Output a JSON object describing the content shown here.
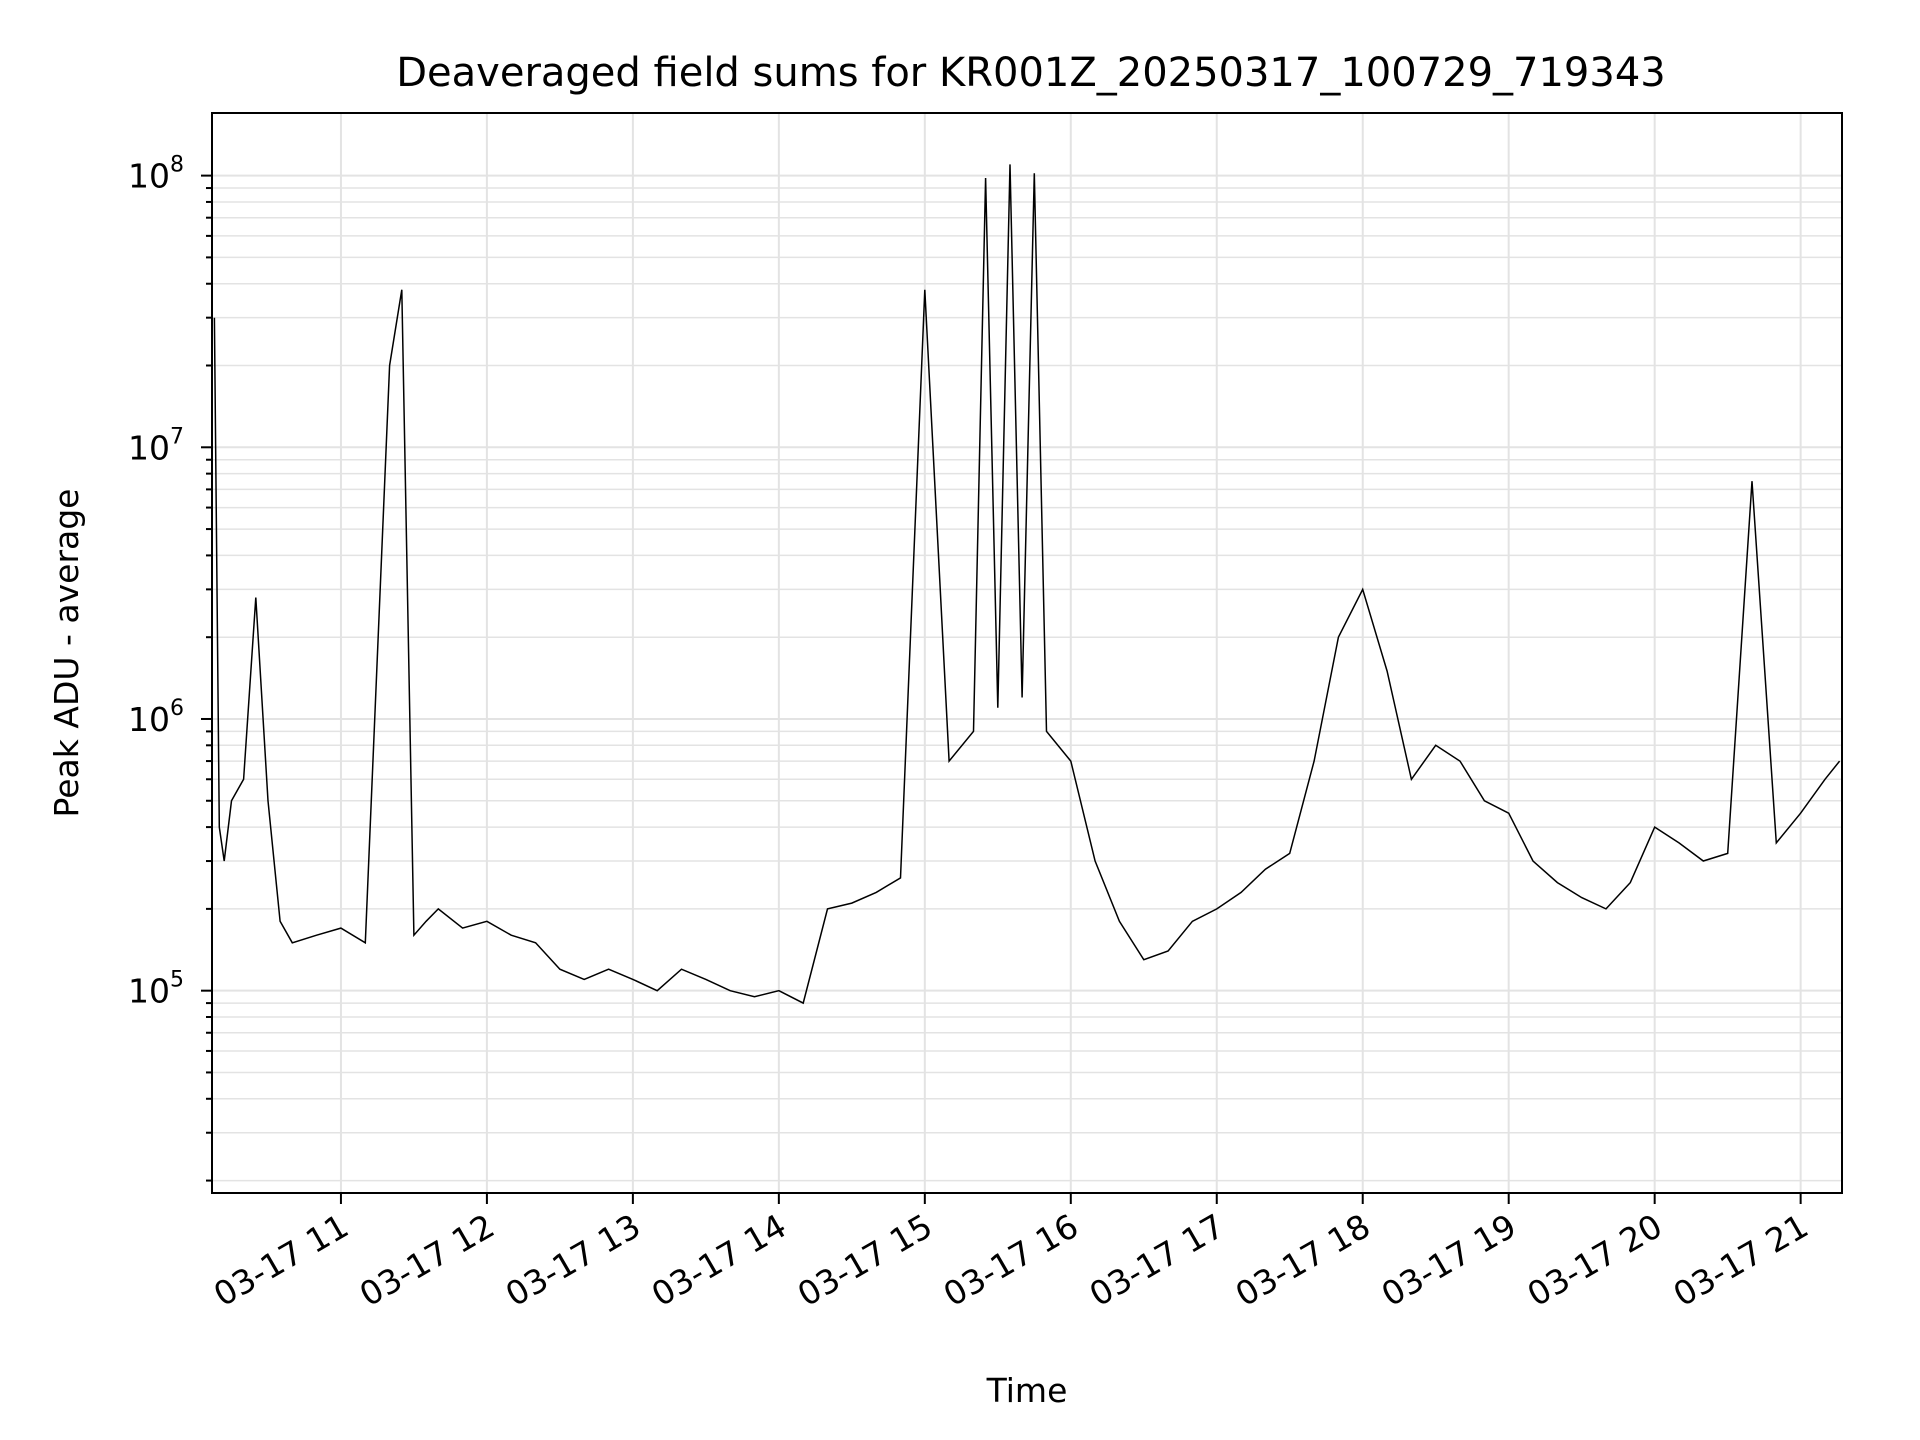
{
  "chart_data": {
    "type": "line",
    "title": "Deaveraged field sums for KR001Z_20250317_100729_719343",
    "xlabel": "Time",
    "ylabel": "Peak ADU - average",
    "x_ticks": [
      "03-17 11",
      "03-17 12",
      "03-17 13",
      "03-17 14",
      "03-17 15",
      "03-17 16",
      "03-17 17",
      "03-17 18",
      "03-17 19",
      "03-17 20",
      "03-17 21"
    ],
    "y_ticks": [
      {
        "base": "10",
        "exp": "5"
      },
      {
        "base": "10",
        "exp": "6"
      },
      {
        "base": "10",
        "exp": "7"
      },
      {
        "base": "10",
        "exp": "8"
      }
    ],
    "yscale": "log",
    "xlim": [
      "2025-03-17 10:07",
      "2025-03-17 21:17"
    ],
    "ylim": [
      18000,
      170000000
    ],
    "grid": true,
    "line_color": "#000000",
    "grid_color": "#e3e3e3",
    "series": [
      {
        "x": [
          "10:08",
          "10:10",
          "10:12",
          "10:15",
          "10:20",
          "10:25",
          "10:30",
          "10:35",
          "10:40",
          "10:50",
          "11:00",
          "11:10",
          "11:20",
          "11:25",
          "11:30",
          "11:35",
          "11:40",
          "11:50",
          "12:00",
          "12:10",
          "12:20",
          "12:30",
          "12:40",
          "12:50",
          "13:00",
          "13:10",
          "13:20",
          "13:30",
          "13:40",
          "13:50",
          "14:00",
          "14:10",
          "14:20",
          "14:30",
          "14:40",
          "14:50",
          "15:00",
          "15:10",
          "15:20",
          "15:25",
          "15:30",
          "15:35",
          "15:40",
          "15:45",
          "15:50",
          "16:00",
          "16:10",
          "16:20",
          "16:30",
          "16:40",
          "16:50",
          "17:00",
          "17:10",
          "17:20",
          "17:30",
          "17:40",
          "17:50",
          "18:00",
          "18:10",
          "18:20",
          "18:30",
          "18:40",
          "18:50",
          "19:00",
          "19:10",
          "19:20",
          "19:30",
          "19:40",
          "19:50",
          "20:00",
          "20:10",
          "20:20",
          "20:30",
          "20:40",
          "20:50",
          "21:00",
          "21:10",
          "21:16"
        ],
        "y": [
          30000000,
          400000,
          300000,
          500000,
          600000,
          2800000,
          500000,
          180000,
          150000,
          160000,
          170000,
          150000,
          20000000,
          38000000,
          160000,
          180000,
          200000,
          170000,
          180000,
          160000,
          150000,
          120000,
          110000,
          120000,
          110000,
          100000,
          120000,
          110000,
          100000,
          95000,
          100000,
          90000,
          200000,
          210000,
          230000,
          260000,
          38000000,
          700000,
          900000,
          98000000,
          1100000,
          110000000,
          1200000,
          102000000,
          900000,
          700000,
          300000,
          180000,
          130000,
          140000,
          180000,
          200000,
          230000,
          280000,
          320000,
          700000,
          2000000,
          3000000,
          1500000,
          600000,
          800000,
          700000,
          500000,
          450000,
          300000,
          250000,
          220000,
          200000,
          250000,
          400000,
          350000,
          300000,
          320000,
          7500000,
          350000,
          450000,
          600000,
          700000
        ]
      }
    ]
  }
}
